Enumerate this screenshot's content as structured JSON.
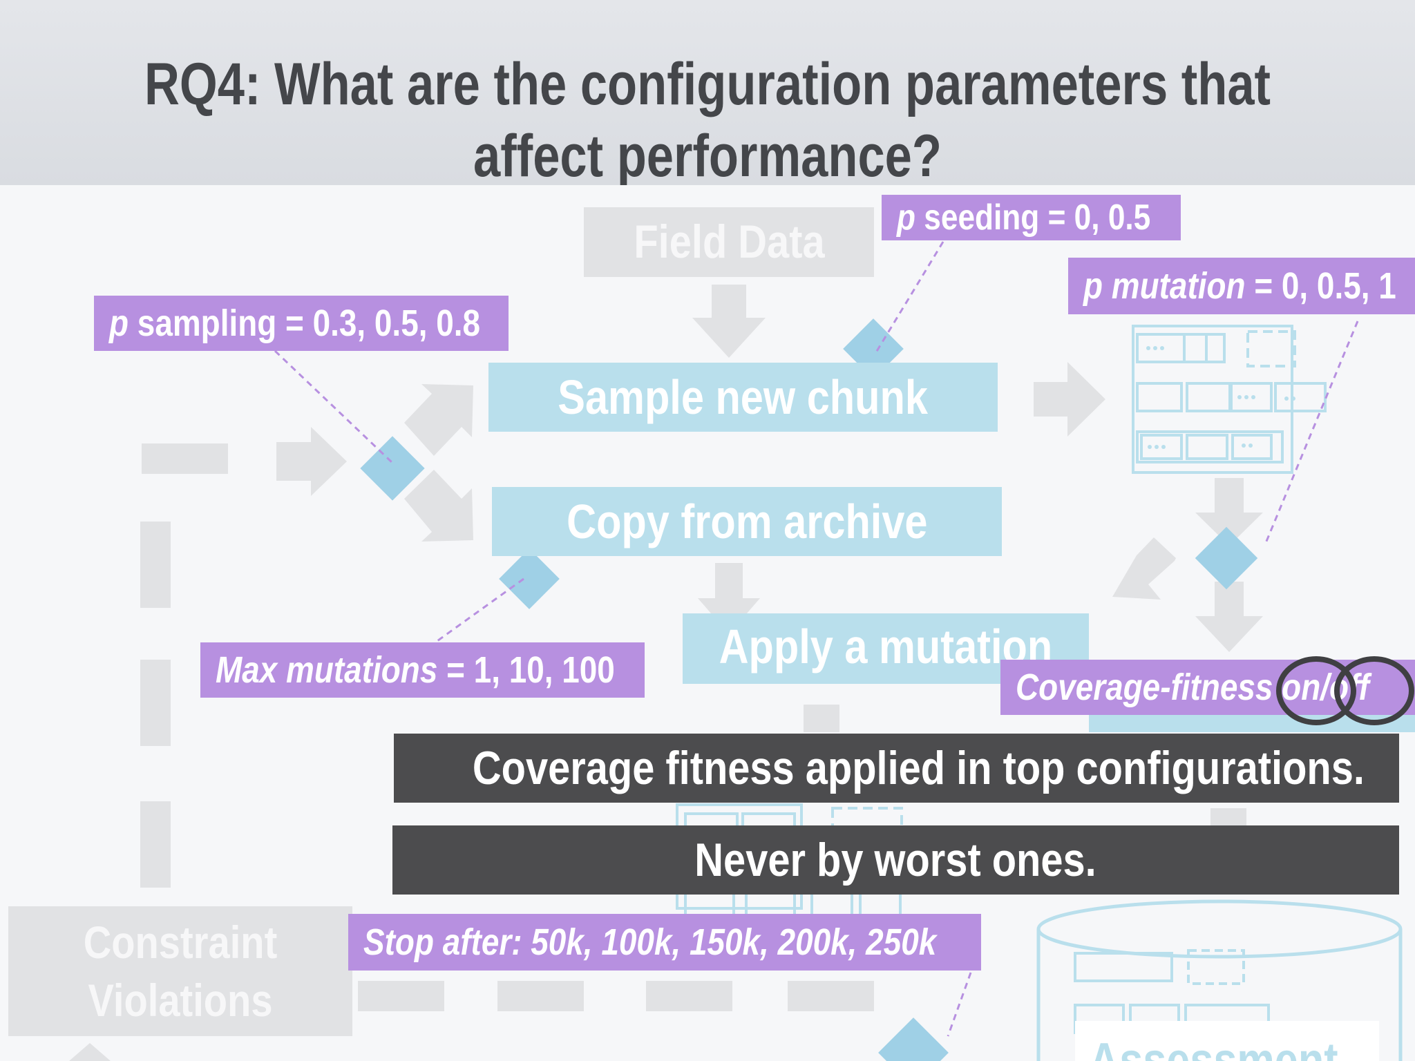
{
  "slide": {
    "title_line1": "RQ4: What are the configuration parameters that",
    "title_line2": "affect performance?"
  },
  "diagram": {
    "field_data": "Field Data",
    "sample_new_chunk": "Sample new chunk",
    "copy_from_archive": "Copy from archive",
    "apply_mutation": "Apply a mutation",
    "constraint_line1": "Constraint",
    "constraint_line2": "Violations",
    "assessment": "Assessment"
  },
  "parameters": {
    "seeding_var": "p",
    "seeding_rest": " seeding = 0, 0.5",
    "mutation_var": "p mutation",
    "mutation_rest": " = 0, 0.5, 1",
    "sampling_var": "p",
    "sampling_rest": " sampling = 0.3, 0.5, 0.8",
    "max_mut_var": "Max mutations",
    "max_mut_rest": " = 1, 10, 100",
    "coverage_text": "Coverage-fitness on/off",
    "stop_text": "Stop after: 50k, 100k, 150k, 200k, 250k"
  },
  "findings": {
    "line1": "Coverage fitness applied in top configurations.",
    "line2": "Never by worst ones."
  },
  "colors": {
    "purple": "#b790e0",
    "blue": "#b9dfec",
    "gray": "#e1e2e4",
    "dark": "#4c4c4e",
    "title": "#44464a"
  }
}
